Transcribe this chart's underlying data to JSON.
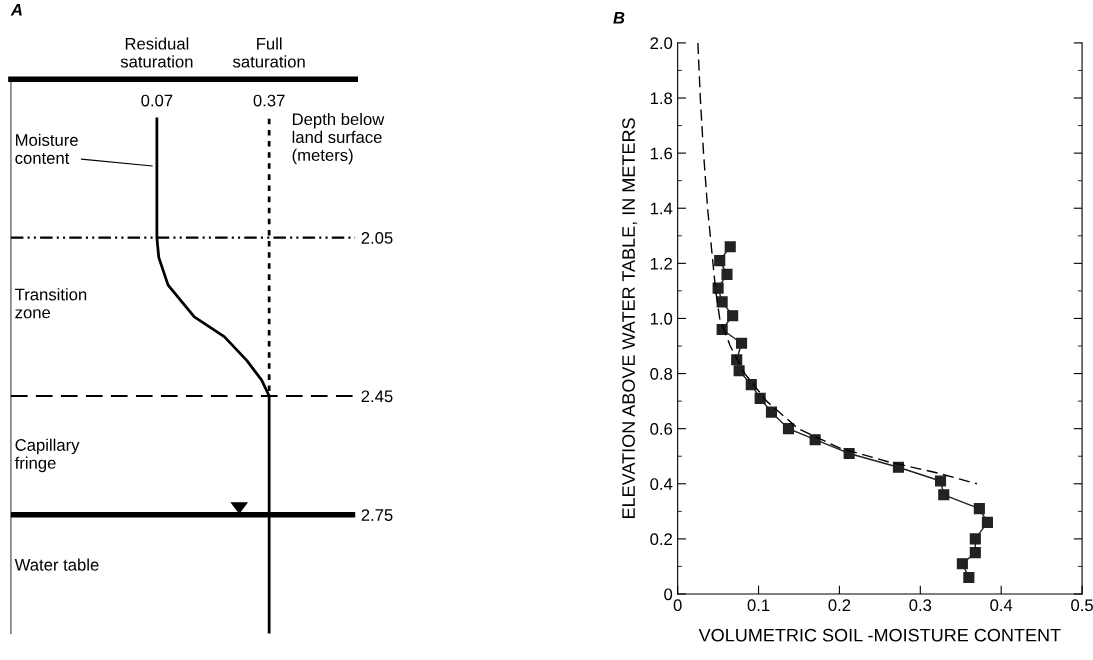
{
  "chart_data": [
    {
      "type": "line",
      "title": "A",
      "xlim": [
        -0.32,
        0.6
      ],
      "ylim": [
        3.05,
        1.65
      ],
      "xticks": [
        0.07,
        0.37
      ],
      "yticks": [
        2.05,
        2.45,
        2.75
      ],
      "grid": false,
      "legend": false,
      "series": [
        {
          "color": "#000000",
          "line_style": "solid",
          "x": [
            0.07,
            0.07,
            0.075,
            0.1,
            0.17,
            0.25,
            0.31,
            0.35,
            0.37,
            0.37
          ],
          "values": [
            1.75,
            2.05,
            2.1,
            2.17,
            2.25,
            2.3,
            2.36,
            2.41,
            2.45,
            3.05
          ]
        },
        {
          "color": "#000000",
          "line_style": "dotted",
          "x": [
            0.37,
            0.37
          ],
          "values": [
            1.75,
            2.45
          ]
        }
      ],
      "ref_lines": [
        {
          "axis": "y",
          "value": 2.05,
          "line_style": "dashdot",
          "color": "#000000"
        },
        {
          "axis": "y",
          "value": 2.45,
          "line_style": "dashed",
          "color": "#000000"
        },
        {
          "axis": "y",
          "value": 2.75,
          "line_style": "solid",
          "color": "#000000"
        }
      ],
      "annotations": [
        "Residual saturation",
        "Full saturation",
        "Depth below land surface (meters)",
        "Moisture content",
        "Transition zone",
        "Capillary fringe",
        "Water table"
      ]
    },
    {
      "type": "line",
      "title": "B",
      "xlabel": "VOLUMETRIC SOIL -MOISTURE CONTENT",
      "ylabel": "ELEVATION ABOVE WATER TABLE, IN METERS",
      "xlim": [
        0,
        0.5
      ],
      "ylim": [
        0,
        2.0
      ],
      "xticks": [
        0,
        0.1,
        0.2,
        0.3,
        0.4,
        0.5
      ],
      "yticks": [
        0,
        0.2,
        0.4,
        0.6,
        0.8,
        {
          "value": 1,
          "label": "1.0"
        },
        1.2,
        1.4,
        1.6,
        1.8,
        {
          "value": 2,
          "label": "2.0"
        }
      ],
      "grid": false,
      "legend": false,
      "series": [
        {
          "color": "#222222",
          "marker": "square",
          "line_style": "solid",
          "x": [
            0.065,
            0.052,
            0.061,
            0.05,
            0.055,
            0.068,
            0.055,
            0.079,
            0.073,
            0.076,
            0.091,
            0.102,
            0.116,
            0.137,
            0.17,
            0.212,
            0.273,
            0.325,
            0.329,
            0.373,
            0.383,
            0.368,
            0.368,
            0.352,
            0.36
          ],
          "values": [
            1.26,
            1.21,
            1.16,
            1.11,
            1.06,
            1.01,
            0.96,
            0.91,
            0.85,
            0.81,
            0.76,
            0.71,
            0.66,
            0.6,
            0.56,
            0.51,
            0.46,
            0.41,
            0.36,
            0.31,
            0.26,
            0.2,
            0.15,
            0.11,
            0.06
          ]
        },
        {
          "color": "#000000",
          "marker": "none",
          "line_style": "dashed",
          "x": [
            0.025,
            0.028,
            0.032,
            0.037,
            0.042,
            0.047,
            0.052,
            0.065,
            0.083,
            0.11,
            0.149,
            0.2,
            0.26,
            0.32,
            0.37
          ],
          "values": [
            2.0,
            1.8,
            1.6,
            1.4,
            1.25,
            1.1,
            1.0,
            0.9,
            0.8,
            0.7,
            0.6,
            0.53,
            0.48,
            0.44,
            0.4
          ]
        }
      ]
    }
  ]
}
